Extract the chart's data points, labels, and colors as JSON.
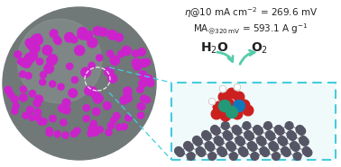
{
  "bg_color": "#ffffff",
  "sphere_color": "#707878",
  "sphere_light_color": "#909898",
  "dot_color": "#cc22cc",
  "box_color": "#44ccdd",
  "arrow_color": "#55ccaa",
  "carbon_color": "#555565",
  "line1": "η@10 mA cm$^{-2}$ = 269.6 mV",
  "line2": "MA$_{@320\\,mV}$ = 593.1 A g$^{-1}$",
  "h2o": "H$_2$O",
  "o2": "O$_2$",
  "text_color": "#222222"
}
